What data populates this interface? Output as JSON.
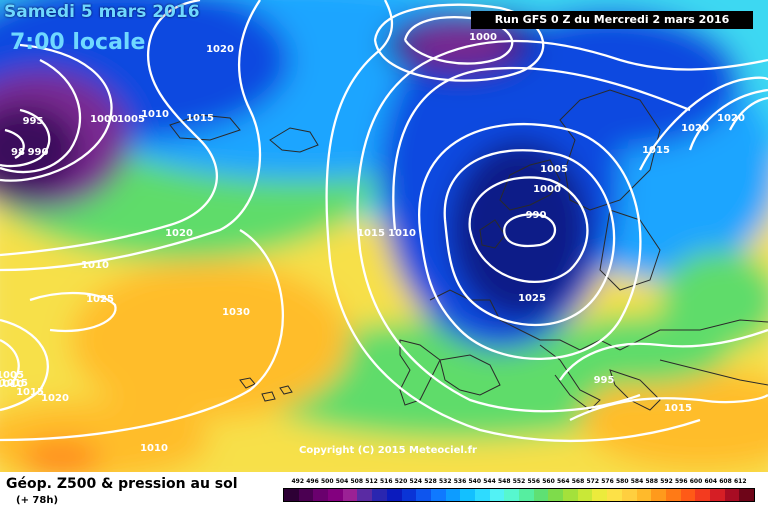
{
  "header": {
    "date": "Samedi 5 mars 2016",
    "time": "7:00 locale",
    "run": "Run GFS 0 Z du Mercredi 2 mars 2016"
  },
  "copyright": "Copyright (C) 2015 Meteociel.fr",
  "footer": {
    "title": "Géop. Z500 & pression au sol",
    "subtitle": "(+ 78h)"
  },
  "isobar_labels": [
    "1020",
    "1000",
    "995",
    "98",
    "990",
    "1000",
    "1005",
    "1010",
    "1015",
    "1015",
    "1020",
    "1010",
    "1005",
    "1000",
    "990",
    "1020",
    "1015",
    "1010",
    "1025",
    "1030",
    "1025",
    "995",
    "1005",
    "1015",
    "1010",
    "1015",
    "1020",
    "1020",
    "1010",
    "1015"
  ],
  "legend": {
    "values": [
      "492",
      "496",
      "500",
      "504",
      "508",
      "512",
      "516",
      "520",
      "524",
      "528",
      "532",
      "536",
      "540",
      "544",
      "548",
      "552",
      "556",
      "560",
      "564",
      "568",
      "572",
      "576",
      "580",
      "584",
      "588",
      "592",
      "596",
      "600",
      "604",
      "608",
      "612"
    ],
    "colors": [
      "#2d0035",
      "#4b0052",
      "#6a006e",
      "#83007f",
      "#9b2195",
      "#5a2ba3",
      "#2a26b0",
      "#0b1bbe",
      "#0a34d6",
      "#0e55ee",
      "#0f79ff",
      "#0d9cff",
      "#13c0ff",
      "#2edbff",
      "#52f2f5",
      "#57f7cf",
      "#56eea0",
      "#5fe073",
      "#7edc4b",
      "#a4e13b",
      "#c9e837",
      "#eceb3c",
      "#fde147",
      "#ffcf3f",
      "#ffba2b",
      "#ff9a1c",
      "#ff7a16",
      "#ff5a17",
      "#f33b1f",
      "#d61e25",
      "#a80c23",
      "#6e0518"
    ]
  },
  "map_layers": {
    "colors": {
      "deep_purple": "#3b0f5c",
      "purple": "#7a2c92",
      "navy": "#0e1f88",
      "blue": "#1148e0",
      "light_blue": "#1aa5ff",
      "cyan": "#3cd8f2",
      "green": "#5fdc6a",
      "yellow_green": "#c8e83a",
      "yellow": "#f7e048",
      "orange": "#ffbd2a",
      "dark_orange": "#ff8c1a",
      "isobar": "#ffffff",
      "coast": "#2a2a2a"
    }
  }
}
